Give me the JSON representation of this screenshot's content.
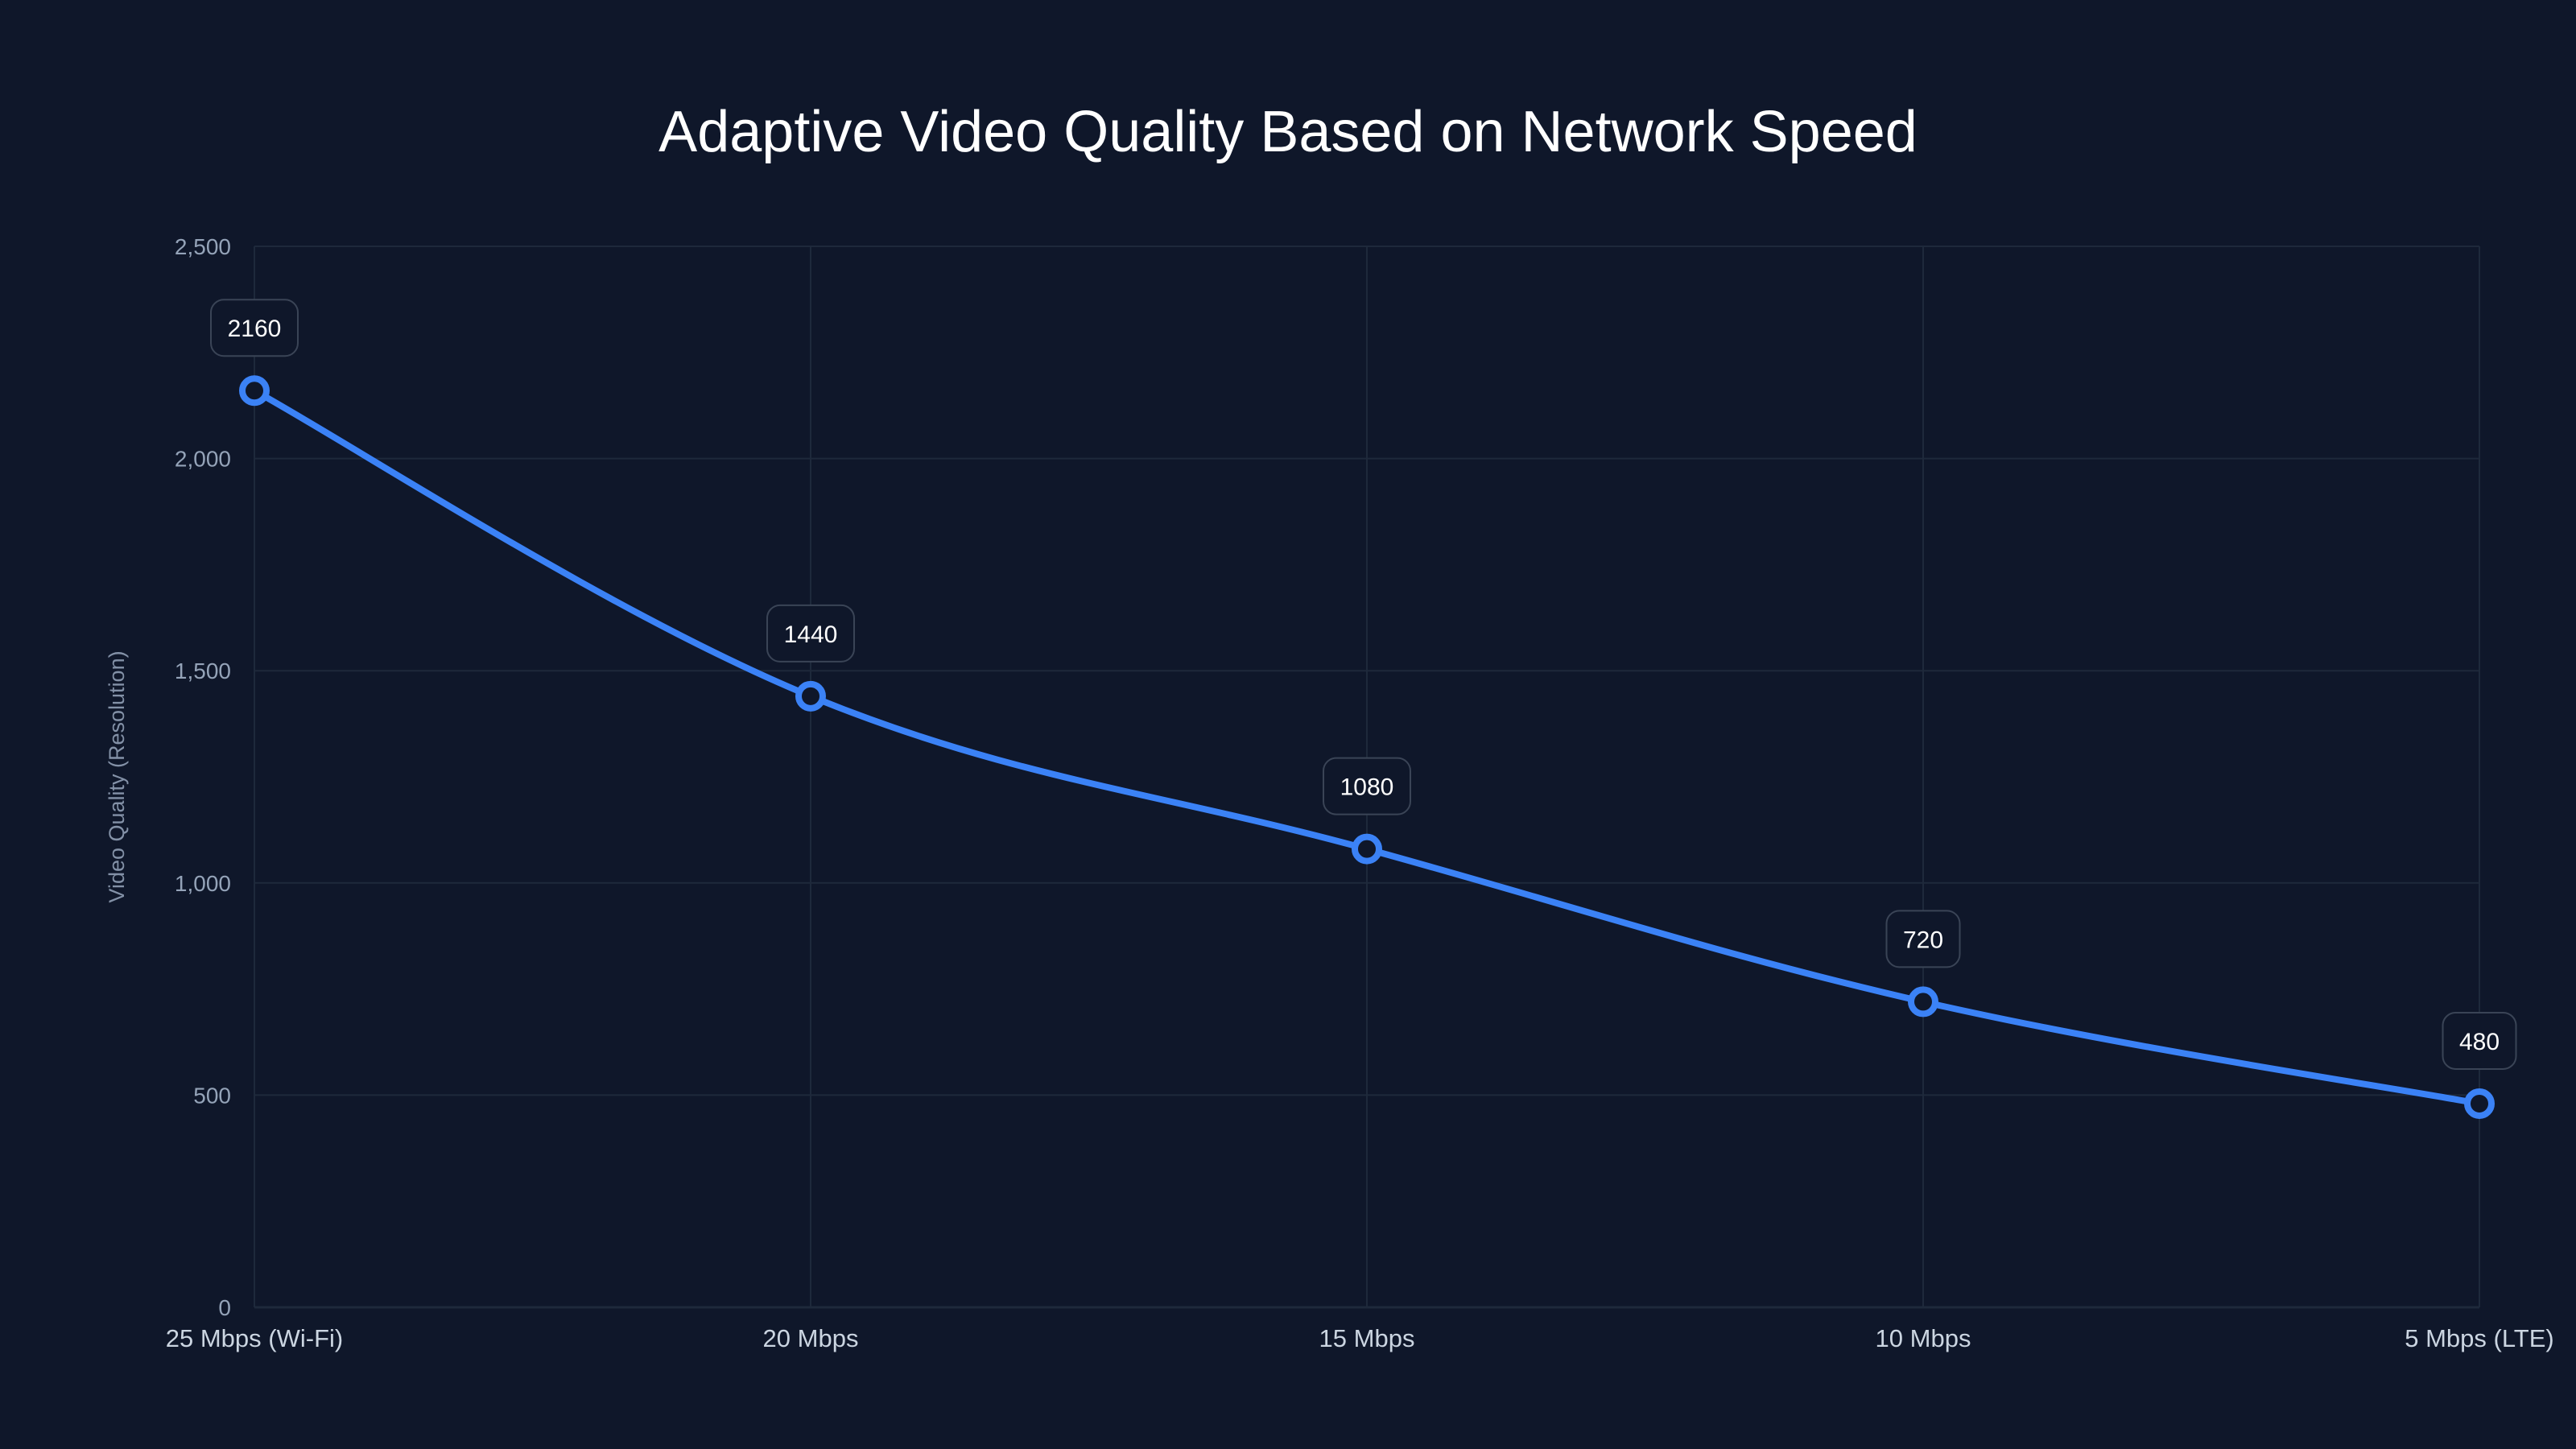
{
  "chart_data": {
    "type": "line",
    "title": "Adaptive Video Quality Based on Network Speed",
    "xlabel": "",
    "ylabel": "Video Quality (Resolution)",
    "categories": [
      "25 Mbps (Wi-Fi)",
      "20 Mbps",
      "15 Mbps",
      "10 Mbps",
      "5 Mbps (LTE)"
    ],
    "series": [
      {
        "name": "Video Quality",
        "values": [
          2160,
          1440,
          1080,
          720,
          480
        ],
        "color": "#3b82f6"
      }
    ],
    "ylim": [
      0,
      2500
    ],
    "yticks": [
      0,
      500,
      1000,
      1500,
      2000,
      2500
    ],
    "ytick_labels": [
      "0",
      "500",
      "1,000",
      "1,500",
      "2,000",
      "2,500"
    ],
    "grid": true,
    "legend": "none",
    "data_labels": [
      "2160",
      "1440",
      "1080",
      "720",
      "480"
    ],
    "smooth": true
  },
  "colors": {
    "background": "#0f172a",
    "line": "#3b82f6",
    "grid": "#1e293b",
    "label_border": "#3a4456"
  }
}
